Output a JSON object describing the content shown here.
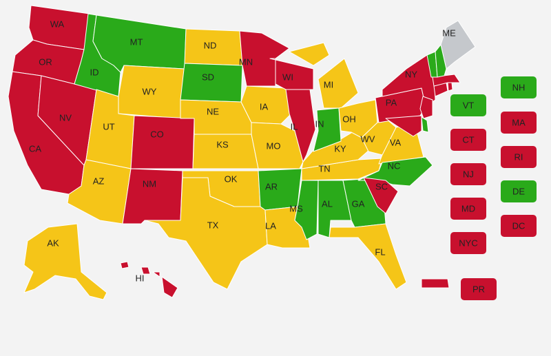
{
  "states": [
    {
      "label": "WA",
      "color": "#c8102e"
    },
    {
      "label": "OR",
      "color": "#c8102e"
    },
    {
      "label": "CA",
      "color": "#c8102e"
    },
    {
      "label": "NV",
      "color": "#c8102e"
    },
    {
      "label": "ID",
      "color": "#2aaa1a"
    },
    {
      "label": "MT",
      "color": "#2aaa1a"
    },
    {
      "label": "WY",
      "color": "#f5c518"
    },
    {
      "label": "UT",
      "color": "#f5c518"
    },
    {
      "label": "CO",
      "color": "#c8102e"
    },
    {
      "label": "AZ",
      "color": "#f5c518"
    },
    {
      "label": "NM",
      "color": "#c8102e"
    },
    {
      "label": "ND",
      "color": "#f5c518"
    },
    {
      "label": "SD",
      "color": "#2aaa1a"
    },
    {
      "label": "NE",
      "color": "#f5c518"
    },
    {
      "label": "KS",
      "color": "#f5c518"
    },
    {
      "label": "OK",
      "color": "#f5c518"
    },
    {
      "label": "TX",
      "color": "#f5c518"
    },
    {
      "label": "MN",
      "color": "#c8102e"
    },
    {
      "label": "IA",
      "color": "#f5c518"
    },
    {
      "label": "MO",
      "color": "#f5c518"
    },
    {
      "label": "AR",
      "color": "#2aaa1a"
    },
    {
      "label": "LA",
      "color": "#f5c518"
    },
    {
      "label": "MS",
      "color": "#2aaa1a"
    },
    {
      "label": "AL",
      "color": "#2aaa1a"
    },
    {
      "label": "GA",
      "color": "#2aaa1a"
    },
    {
      "label": "FL",
      "color": "#f5c518"
    },
    {
      "label": "TN",
      "color": "#f5c518"
    },
    {
      "label": "KY",
      "color": "#f5c518"
    },
    {
      "label": "IL",
      "color": "#c8102e"
    },
    {
      "label": "WI",
      "color": "#c8102e"
    },
    {
      "label": "MI",
      "color": "#f5c518"
    },
    {
      "label": "IN",
      "color": "#2aaa1a"
    },
    {
      "label": "OH",
      "color": "#f5c518"
    },
    {
      "label": "WV",
      "color": "#f5c518"
    },
    {
      "label": "VA",
      "color": "#f5c518"
    },
    {
      "label": "NC",
      "color": "#2aaa1a"
    },
    {
      "label": "SC",
      "color": "#c8102e"
    },
    {
      "label": "PA",
      "color": "#c8102e"
    },
    {
      "label": "NY",
      "color": "#c8102e"
    },
    {
      "label": "ME",
      "color": "#c5c8cc"
    },
    {
      "label": "AK",
      "color": "#f5c518"
    },
    {
      "label": "HI",
      "color": "#c8102e"
    },
    {
      "color": "#c8102e"
    },
    {
      "color": "#2aaa1a"
    },
    {
      "color": "#c8102e"
    },
    {
      "color": "#c8102e"
    },
    {
      "color": "#c8102e"
    },
    {
      "color": "#c8102e"
    },
    {
      "color": "#2aaa1a"
    },
    {
      "color": "#2aaa1a"
    },
    {
      "color": "#c8102e"
    }
  ],
  "boxes": [
    {
      "label": "VT",
      "color": "#2aaa1a"
    },
    {
      "label": "NH",
      "color": "#2aaa1a"
    },
    {
      "label": "CT",
      "color": "#c8102e"
    },
    {
      "label": "MA",
      "color": "#c8102e"
    },
    {
      "label": "NJ",
      "color": "#c8102e"
    },
    {
      "label": "RI",
      "color": "#c8102e"
    },
    {
      "label": "MD",
      "color": "#c8102e"
    },
    {
      "label": "DE",
      "color": "#2aaa1a"
    },
    {
      "label": "NYC",
      "color": "#c8102e"
    },
    {
      "label": "DC",
      "color": "#c8102e"
    },
    {
      "label": "PR",
      "color": "#c8102e"
    }
  ]
}
